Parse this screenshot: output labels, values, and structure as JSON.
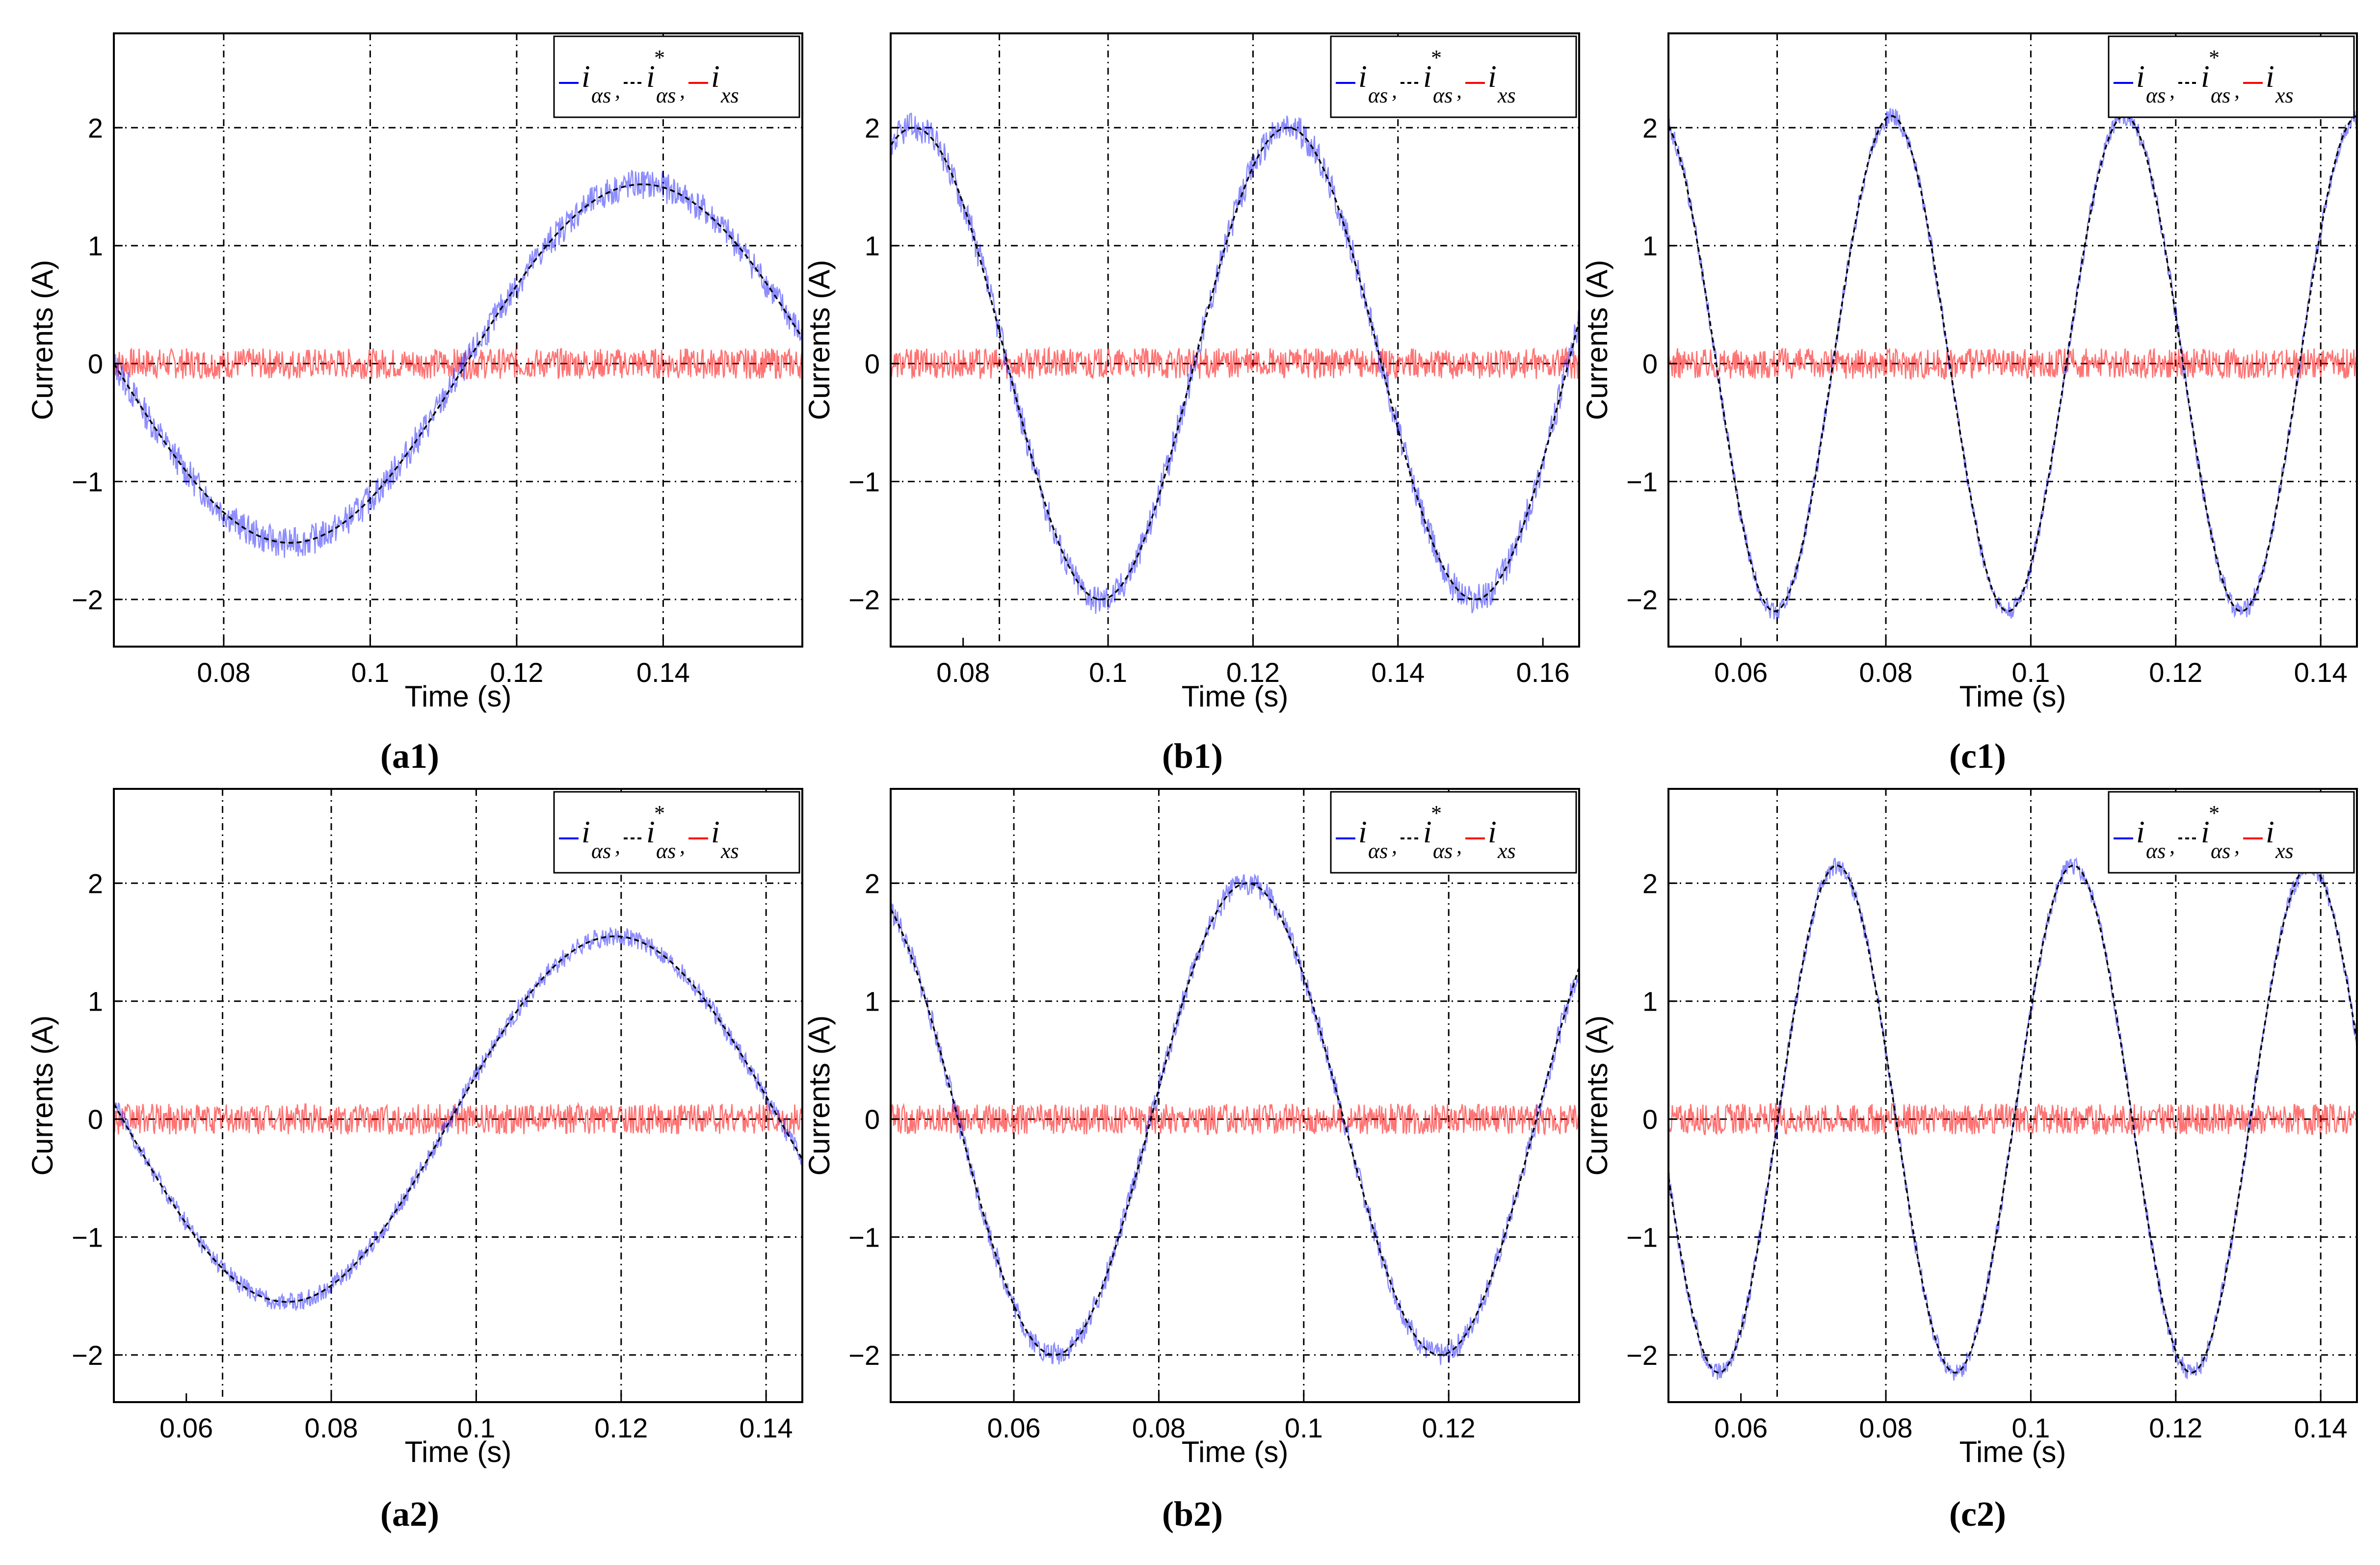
{
  "figure": {
    "captions": [
      "(a1)",
      "(b1)",
      "(c1)",
      "(a2)",
      "(b2)",
      "(c2)"
    ]
  },
  "legend": {
    "items": [
      {
        "symbol": "i",
        "sub": "αs",
        "sup": "",
        "sep": ",",
        "color": "#0000ff",
        "style": "solid"
      },
      {
        "symbol": "i",
        "sub": "αs",
        "sup": "*",
        "sep": ",",
        "color": "#000000",
        "style": "dashed"
      },
      {
        "symbol": "i",
        "sub": "xs",
        "sup": "",
        "sep": "",
        "color": "#ff0000",
        "style": "solid"
      }
    ]
  },
  "colors": {
    "measured": "#0000ff",
    "reference": "#000000",
    "x_current": "#ff0000",
    "grid": "#000000"
  },
  "chart_data": [
    {
      "id": "a1",
      "type": "line",
      "caption": "(a1)",
      "xlabel": "Time (s)",
      "ylabel": "Currents (A)",
      "xlim": [
        0.065,
        0.159
      ],
      "ylim": [
        -2.4,
        2.8
      ],
      "xticks": [
        0.08,
        0.1,
        0.12,
        0.14
      ],
      "xtick_labels": [
        "0.08",
        "0.1",
        "0.12",
        "0.14"
      ],
      "yticks": [
        -2,
        -1,
        0,
        1,
        2
      ],
      "ytick_labels": [
        "−2",
        "−1",
        "0",
        "1",
        "2"
      ],
      "xgrid": [
        0.065,
        0.08,
        0.1,
        0.12,
        0.14
      ],
      "grid": true,
      "legend_position": "top-right",
      "series": [
        {
          "name": "i_αs",
          "color": "#0000ff",
          "style": "solid",
          "amplitude": 1.52,
          "period": 0.0962,
          "zero_up": 0.1131,
          "ripple": 0.13
        },
        {
          "name": "i*_αs",
          "color": "#000000",
          "style": "dashed",
          "amplitude": 1.52,
          "period": 0.0962,
          "zero_up": 0.1131
        },
        {
          "name": "i_xs",
          "color": "#ff0000",
          "style": "solid",
          "noise_amplitude": 0.13
        }
      ]
    },
    {
      "id": "b1",
      "type": "line",
      "caption": "(b1)",
      "xlabel": "Time (s)",
      "ylabel": "Currents (A)",
      "xlim": [
        0.07,
        0.165
      ],
      "ylim": [
        -2.4,
        2.8
      ],
      "xticks": [
        0.08,
        0.1,
        0.12,
        0.14,
        0.16
      ],
      "xtick_labels": [
        "0.08",
        "0.1",
        "0.12",
        "0.14",
        "0.16"
      ],
      "yticks": [
        -2,
        -1,
        0,
        1,
        2
      ],
      "ytick_labels": [
        "−2",
        "−1",
        "0",
        "1",
        "2"
      ],
      "xgrid": [
        0.085,
        0.1,
        0.12,
        0.14
      ],
      "grid": true,
      "legend_position": "top-right",
      "series": [
        {
          "name": "i_αs",
          "color": "#0000ff",
          "style": "solid",
          "amplitude": 2.0,
          "period": 0.0516,
          "zero_up": 0.1119,
          "ripple": 0.13
        },
        {
          "name": "i*_αs",
          "color": "#000000",
          "style": "dashed",
          "amplitude": 2.0,
          "period": 0.0516,
          "zero_up": 0.1119
        },
        {
          "name": "i_xs",
          "color": "#ff0000",
          "style": "solid",
          "noise_amplitude": 0.13
        }
      ]
    },
    {
      "id": "c1",
      "type": "line",
      "caption": "(c1)",
      "xlabel": "Time (s)",
      "ylabel": "Currents (A)",
      "xlim": [
        0.05,
        0.145
      ],
      "ylim": [
        -2.4,
        2.8
      ],
      "xticks": [
        0.06,
        0.08,
        0.1,
        0.12,
        0.14
      ],
      "xtick_labels": [
        "0.06",
        "0.08",
        "0.1",
        "0.12",
        "0.14"
      ],
      "yticks": [
        -2,
        -1,
        0,
        1,
        2
      ],
      "ytick_labels": [
        "−2",
        "−1",
        "0",
        "1",
        "2"
      ],
      "xgrid": [
        0.065,
        0.08,
        0.1,
        0.12,
        0.14
      ],
      "grid": true,
      "legend_position": "top-right",
      "series": [
        {
          "name": "i_αs",
          "color": "#0000ff",
          "style": "solid",
          "amplitude": 2.1,
          "period": 0.0322,
          "zero_up": 0.0727,
          "ripple": 0.08
        },
        {
          "name": "i*_αs",
          "color": "#000000",
          "style": "dashed",
          "amplitude": 2.1,
          "period": 0.0322,
          "zero_up": 0.0727
        },
        {
          "name": "i_xs",
          "color": "#ff0000",
          "style": "solid",
          "noise_amplitude": 0.13
        }
      ]
    },
    {
      "id": "a2",
      "type": "line",
      "caption": "(a2)",
      "xlabel": "Time (s)",
      "ylabel": "Currents (A)",
      "xlim": [
        0.05,
        0.145
      ],
      "ylim": [
        -2.4,
        2.8
      ],
      "xticks": [
        0.06,
        0.08,
        0.1,
        0.12,
        0.14
      ],
      "xtick_labels": [
        "0.06",
        "0.08",
        "0.1",
        "0.12",
        "0.14"
      ],
      "yticks": [
        -2,
        -1,
        0,
        1,
        2
      ],
      "ytick_labels": [
        "−2",
        "−1",
        "0",
        "1",
        "2"
      ],
      "xgrid": [
        0.065,
        0.08,
        0.1,
        0.12,
        0.14
      ],
      "grid": true,
      "legend_position": "top-right",
      "series": [
        {
          "name": "i_αs",
          "color": "#0000ff",
          "style": "solid",
          "amplitude": 1.55,
          "period": 0.0906,
          "zero_up": 0.0965,
          "ripple": 0.08
        },
        {
          "name": "i*_αs",
          "color": "#000000",
          "style": "dashed",
          "amplitude": 1.55,
          "period": 0.0906,
          "zero_up": 0.0965
        },
        {
          "name": "i_xs",
          "color": "#ff0000",
          "style": "solid",
          "noise_amplitude": 0.13
        }
      ]
    },
    {
      "id": "b2",
      "type": "line",
      "caption": "(b2)",
      "xlabel": "Time (s)",
      "ylabel": "Currents (A)",
      "xlim": [
        0.043,
        0.138
      ],
      "ylim": [
        -2.4,
        2.8
      ],
      "xticks": [
        0.06,
        0.08,
        0.1,
        0.12
      ],
      "xtick_labels": [
        "0.06",
        "0.08",
        "0.1",
        "0.12"
      ],
      "yticks": [
        -2,
        -1,
        0,
        1,
        2
      ],
      "ytick_labels": [
        "−2",
        "−1",
        "0",
        "1",
        "2"
      ],
      "xgrid": [
        0.06,
        0.08,
        0.1,
        0.12
      ],
      "grid": true,
      "legend_position": "top-right",
      "series": [
        {
          "name": "i_αs",
          "color": "#0000ff",
          "style": "solid",
          "amplitude": 2.0,
          "period": 0.0532,
          "zero_up": 0.0789,
          "ripple": 0.1
        },
        {
          "name": "i*_αs",
          "color": "#000000",
          "style": "dashed",
          "amplitude": 2.0,
          "period": 0.0532,
          "zero_up": 0.0789
        },
        {
          "name": "i_xs",
          "color": "#ff0000",
          "style": "solid",
          "noise_amplitude": 0.13
        }
      ]
    },
    {
      "id": "c2",
      "type": "line",
      "caption": "(c2)",
      "xlabel": "Time (s)",
      "ylabel": "Currents (A)",
      "xlim": [
        0.05,
        0.145
      ],
      "ylim": [
        -2.4,
        2.8
      ],
      "xticks": [
        0.06,
        0.08,
        0.1,
        0.12,
        0.14
      ],
      "xtick_labels": [
        "0.06",
        "0.08",
        "0.1",
        "0.12",
        "0.14"
      ],
      "yticks": [
        -2,
        -1,
        0,
        1,
        2
      ],
      "ytick_labels": [
        "−2",
        "−1",
        "0",
        "1",
        "2"
      ],
      "xgrid": [
        0.065,
        0.08,
        0.1,
        0.12,
        0.14
      ],
      "grid": true,
      "legend_position": "top-right",
      "series": [
        {
          "name": "i_αs",
          "color": "#0000ff",
          "style": "solid",
          "amplitude": 2.15,
          "period": 0.0326,
          "zero_up": 0.0651,
          "ripple": 0.08
        },
        {
          "name": "i*_αs",
          "color": "#000000",
          "style": "dashed",
          "amplitude": 2.15,
          "period": 0.0326,
          "zero_up": 0.0651
        },
        {
          "name": "i_xs",
          "color": "#ff0000",
          "style": "solid",
          "noise_amplitude": 0.13
        }
      ]
    }
  ]
}
